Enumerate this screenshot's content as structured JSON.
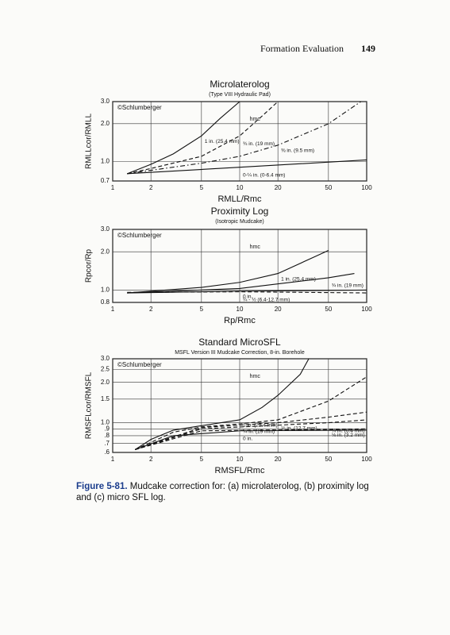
{
  "header": {
    "running_head": "Formation Evaluation",
    "page_number": "149"
  },
  "chart_data": [
    {
      "type": "line",
      "title": "Microlaterolog",
      "subtitle": "(Type VIII Hydraulic Pad)",
      "credit": "©Schlumberger",
      "annotation": "hmc",
      "x_label": "RMLL/Rmc",
      "y_label": "RMLLcor/RMLL",
      "xscale": "log",
      "yscale": "log",
      "grid": true,
      "xlim": [
        1,
        100
      ],
      "xticks": [
        1,
        2,
        5,
        10,
        20,
        50,
        100
      ],
      "ylim": [
        0.7,
        3.0
      ],
      "yticks": [
        0.7,
        {
          "value": 1,
          "label": "1.0"
        },
        {
          "value": 2,
          "label": "2.0"
        },
        {
          "value": 3,
          "label": "3.0"
        }
      ],
      "series": [
        {
          "name": "1 in. (25.4 mm)",
          "color": "#111111",
          "dash": "solid",
          "x": [
            1.3,
            2,
            3,
            5,
            7,
            10
          ],
          "values": [
            0.8,
            0.95,
            1.15,
            1.6,
            2.2,
            3.0
          ]
        },
        {
          "name": "¾ in. (19 mm)",
          "color": "#111111",
          "dash": "dashed",
          "x": [
            1.3,
            2,
            5,
            10,
            15,
            20
          ],
          "values": [
            0.8,
            0.88,
            1.1,
            1.6,
            2.3,
            3.0
          ]
        },
        {
          "name": "⅜ in. (9.5 mm)",
          "color": "#111111",
          "dash": "dashdot",
          "x": [
            1.3,
            5,
            10,
            20,
            50,
            90
          ],
          "values": [
            0.8,
            0.97,
            1.1,
            1.35,
            2.0,
            3.0
          ]
        },
        {
          "name": "0-¼ in. (0-6.4 mm)",
          "color": "#111111",
          "dash": "solid",
          "x": [
            1.3,
            10,
            100
          ],
          "values": [
            0.8,
            0.9,
            1.03
          ]
        }
      ]
    },
    {
      "type": "line",
      "title": "Proximity Log",
      "subtitle": "(Isotropic Mudcake)",
      "credit": "©Schlumberger",
      "annotation": "hmc",
      "x_label": "Rp/Rmc",
      "y_label": "Rpcor/Rp",
      "xscale": "log",
      "yscale": "log",
      "grid": true,
      "xlim": [
        1,
        100
      ],
      "xticks": [
        1,
        2,
        5,
        10,
        20,
        50,
        100
      ],
      "ylim": [
        0.8,
        3.0
      ],
      "yticks": [
        0.8,
        {
          "value": 1,
          "label": "1.0"
        },
        {
          "value": 2,
          "label": "2.0"
        },
        {
          "value": 3,
          "label": "3.0"
        }
      ],
      "series": [
        {
          "name": "1 in. (25.4 mm)",
          "color": "#111111",
          "dash": "solid",
          "x": [
            1.3,
            5,
            10,
            20,
            40,
            50
          ],
          "values": [
            0.95,
            1.05,
            1.15,
            1.35,
            1.85,
            2.05
          ]
        },
        {
          "name": "¾ in. (19 mm)",
          "color": "#111111",
          "dash": "solid",
          "x": [
            1.3,
            10,
            50,
            80
          ],
          "values": [
            0.95,
            1.03,
            1.25,
            1.35
          ]
        },
        {
          "name": "0 in.",
          "color": "#111111",
          "dash": "solid",
          "x": [
            1.3,
            10,
            100
          ],
          "values": [
            0.95,
            0.98,
            1.0
          ]
        },
        {
          "name": "¼ - ½ (6.4-12.7 mm)",
          "color": "#111111",
          "dash": "dashed",
          "x": [
            1.3,
            10,
            100
          ],
          "values": [
            0.96,
            0.97,
            0.95
          ]
        }
      ]
    },
    {
      "type": "line",
      "title": "Standard MicroSFL",
      "subtitle": "MSFL Version III Mudcake Correction, 8-in. Borehole",
      "credit": "©Schlumberger",
      "annotation": "hmc",
      "x_label": "RMSFL/Rmc",
      "y_label": "RMSFLcor/RMSFL",
      "xscale": "log",
      "yscale": "log",
      "grid": true,
      "xlim": [
        1,
        100
      ],
      "xticks": [
        1,
        2,
        5,
        10,
        20,
        50,
        100
      ],
      "ylim": [
        0.6,
        3.0
      ],
      "yticks": [
        {
          "value": 0.6,
          "label": ".6"
        },
        {
          "value": 0.7,
          "label": ".7"
        },
        {
          "value": 0.8,
          "label": ".8"
        },
        {
          "value": 0.9,
          "label": ".9"
        },
        {
          "value": 1,
          "label": "1.0"
        },
        1.5,
        {
          "value": 2,
          "label": "2.0"
        },
        2.5,
        {
          "value": 3,
          "label": "3.0"
        }
      ],
      "series": [
        {
          "name": "1 in. (25.4 mm)",
          "color": "#111111",
          "dash": "solid",
          "x": [
            1.5,
            2,
            3,
            5,
            10,
            15,
            20,
            30,
            35
          ],
          "values": [
            0.63,
            0.75,
            0.88,
            0.95,
            1.05,
            1.3,
            1.6,
            2.3,
            3.0
          ]
        },
        {
          "name": "¾ in. (19 mm)",
          "color": "#111111",
          "dash": "dashed",
          "x": [
            1.5,
            3,
            5,
            10,
            20,
            50,
            100
          ],
          "values": [
            0.63,
            0.85,
            0.93,
            0.98,
            1.05,
            1.45,
            2.2
          ]
        },
        {
          "name": "½ in. (12.7 mm)",
          "color": "#111111",
          "dash": "dashed",
          "x": [
            1.5,
            5,
            20,
            50,
            100
          ],
          "values": [
            0.63,
            0.92,
            1.0,
            1.1,
            1.2
          ]
        },
        {
          "name": "¼ in. (6.4 mm)",
          "color": "#111111",
          "dash": "dashed",
          "x": [
            1.5,
            5,
            50,
            100
          ],
          "values": [
            0.63,
            0.9,
            1.0,
            1.05
          ]
        },
        {
          "name": "⅛ in. (3.2 mm)",
          "color": "#111111",
          "dash": "dashed",
          "x": [
            1.5,
            5,
            50,
            100
          ],
          "values": [
            0.63,
            0.87,
            0.89,
            0.9
          ]
        },
        {
          "name": "0 in.",
          "color": "#111111",
          "dash": "solid",
          "x": [
            1.5,
            3,
            10,
            100
          ],
          "values": [
            0.63,
            0.8,
            0.87,
            0.88
          ]
        }
      ]
    }
  ],
  "figure_caption": {
    "label": "Figure 5-81.",
    "text": "Mudcake correction for: (a) microlaterolog, (b) proximity log and (c) micro SFL log."
  }
}
